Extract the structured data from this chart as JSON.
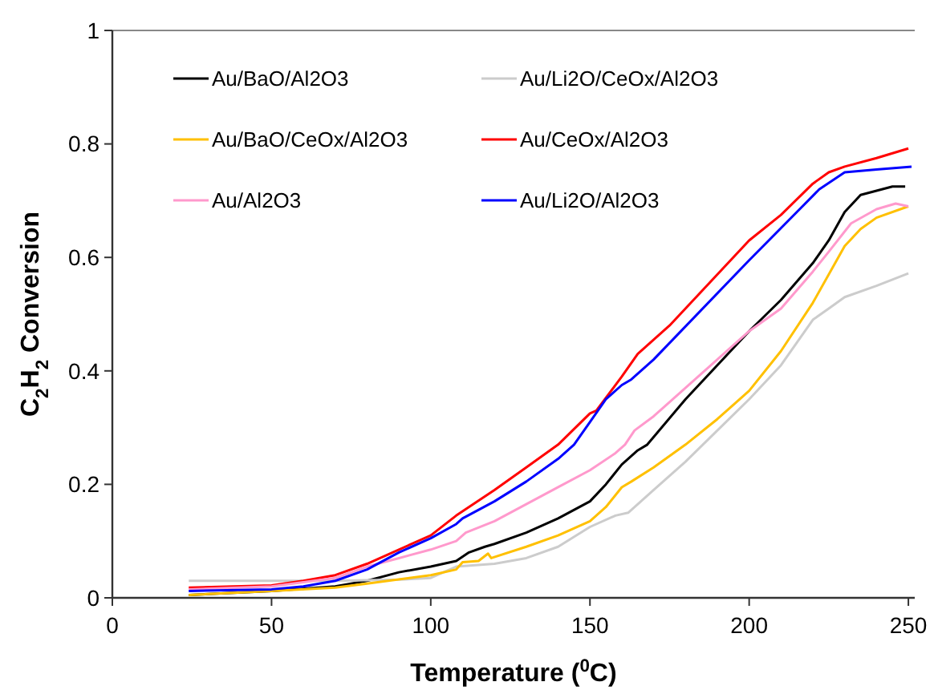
{
  "chart_data": {
    "type": "line",
    "xlabel": "Temperature ($^{0}$C)",
    "ylabel": "C$_{2}$H$_{2}$ Conversion",
    "xlim": [
      0,
      252
    ],
    "xticks": [
      0,
      50,
      100,
      150,
      200,
      250
    ],
    "ylim": [
      0,
      1
    ],
    "yticks": [
      0,
      0.2,
      0.4,
      0.6,
      0.8,
      1
    ],
    "grid": false,
    "legend": "top left",
    "marker": "none",
    "line_style": "solid",
    "series": [
      {
        "name": "Au/BaO/Al2O3",
        "color": "#000000",
        "x": [
          24,
          50,
          70,
          80,
          90,
          100,
          108,
          112,
          117,
          120,
          130,
          140,
          150,
          155,
          160,
          165,
          168,
          180,
          200,
          210,
          220,
          225,
          230,
          235,
          245,
          249
        ],
        "values": [
          0.005,
          0.012,
          0.02,
          0.03,
          0.045,
          0.055,
          0.065,
          0.08,
          0.09,
          0.095,
          0.115,
          0.14,
          0.17,
          0.2,
          0.235,
          0.26,
          0.27,
          0.35,
          0.47,
          0.525,
          0.59,
          0.63,
          0.68,
          0.71,
          0.725,
          0.725
        ]
      },
      {
        "name": "Au/Li2O/CeOx/Al2O3",
        "color": "#cccccc",
        "x": [
          24,
          50,
          70,
          90,
          100,
          108,
          120,
          130,
          140,
          150,
          158,
          162,
          170,
          180,
          200,
          210,
          215,
          220,
          225,
          230,
          240,
          250
        ],
        "values": [
          0.03,
          0.03,
          0.03,
          0.032,
          0.035,
          0.055,
          0.06,
          0.07,
          0.09,
          0.125,
          0.145,
          0.15,
          0.19,
          0.24,
          0.35,
          0.41,
          0.45,
          0.49,
          0.51,
          0.53,
          0.55,
          0.572
        ]
      },
      {
        "name": "Au/BaO/CeOx/Al2O3",
        "color": "#ffc000",
        "x": [
          24,
          50,
          70,
          80,
          100,
          108,
          110,
          115,
          118,
          119,
          130,
          140,
          150,
          155,
          160,
          163,
          170,
          180,
          190,
          200,
          210,
          220,
          230,
          235,
          240,
          250
        ],
        "values": [
          0.005,
          0.012,
          0.018,
          0.025,
          0.04,
          0.05,
          0.063,
          0.065,
          0.078,
          0.07,
          0.09,
          0.11,
          0.135,
          0.16,
          0.195,
          0.205,
          0.23,
          0.27,
          0.315,
          0.365,
          0.435,
          0.52,
          0.62,
          0.65,
          0.67,
          0.69
        ]
      },
      {
        "name": "Au/CeOx/Al2O3",
        "color": "#ff0000",
        "x": [
          24,
          50,
          60,
          70,
          80,
          90,
          100,
          108,
          120,
          130,
          140,
          150,
          152,
          160,
          165,
          175,
          200,
          210,
          220,
          225,
          230,
          240,
          250
        ],
        "values": [
          0.018,
          0.022,
          0.03,
          0.04,
          0.06,
          0.085,
          0.11,
          0.145,
          0.19,
          0.23,
          0.27,
          0.325,
          0.33,
          0.39,
          0.43,
          0.48,
          0.63,
          0.675,
          0.73,
          0.75,
          0.76,
          0.775,
          0.792
        ]
      },
      {
        "name": "Au/Al2O3",
        "color": "#ff99cc",
        "x": [
          24,
          50,
          70,
          80,
          90,
          100,
          108,
          111,
          120,
          140,
          150,
          158,
          161,
          164,
          170,
          200,
          210,
          220,
          225,
          232,
          240,
          246,
          250
        ],
        "values": [
          0.015,
          0.02,
          0.035,
          0.055,
          0.07,
          0.085,
          0.1,
          0.115,
          0.135,
          0.195,
          0.225,
          0.255,
          0.27,
          0.295,
          0.32,
          0.47,
          0.51,
          0.575,
          0.61,
          0.66,
          0.685,
          0.695,
          0.69
        ]
      },
      {
        "name": "Au/Li2O/Al2O3",
        "color": "#0000ff",
        "x": [
          24,
          50,
          60,
          70,
          80,
          90,
          100,
          108,
          110,
          120,
          130,
          140,
          145,
          150,
          155,
          160,
          163,
          170,
          200,
          215,
          222,
          230,
          240,
          251
        ],
        "values": [
          0.012,
          0.015,
          0.02,
          0.03,
          0.05,
          0.08,
          0.105,
          0.13,
          0.14,
          0.17,
          0.205,
          0.245,
          0.27,
          0.31,
          0.35,
          0.375,
          0.385,
          0.42,
          0.595,
          0.68,
          0.72,
          0.75,
          0.755,
          0.76
        ]
      }
    ]
  }
}
